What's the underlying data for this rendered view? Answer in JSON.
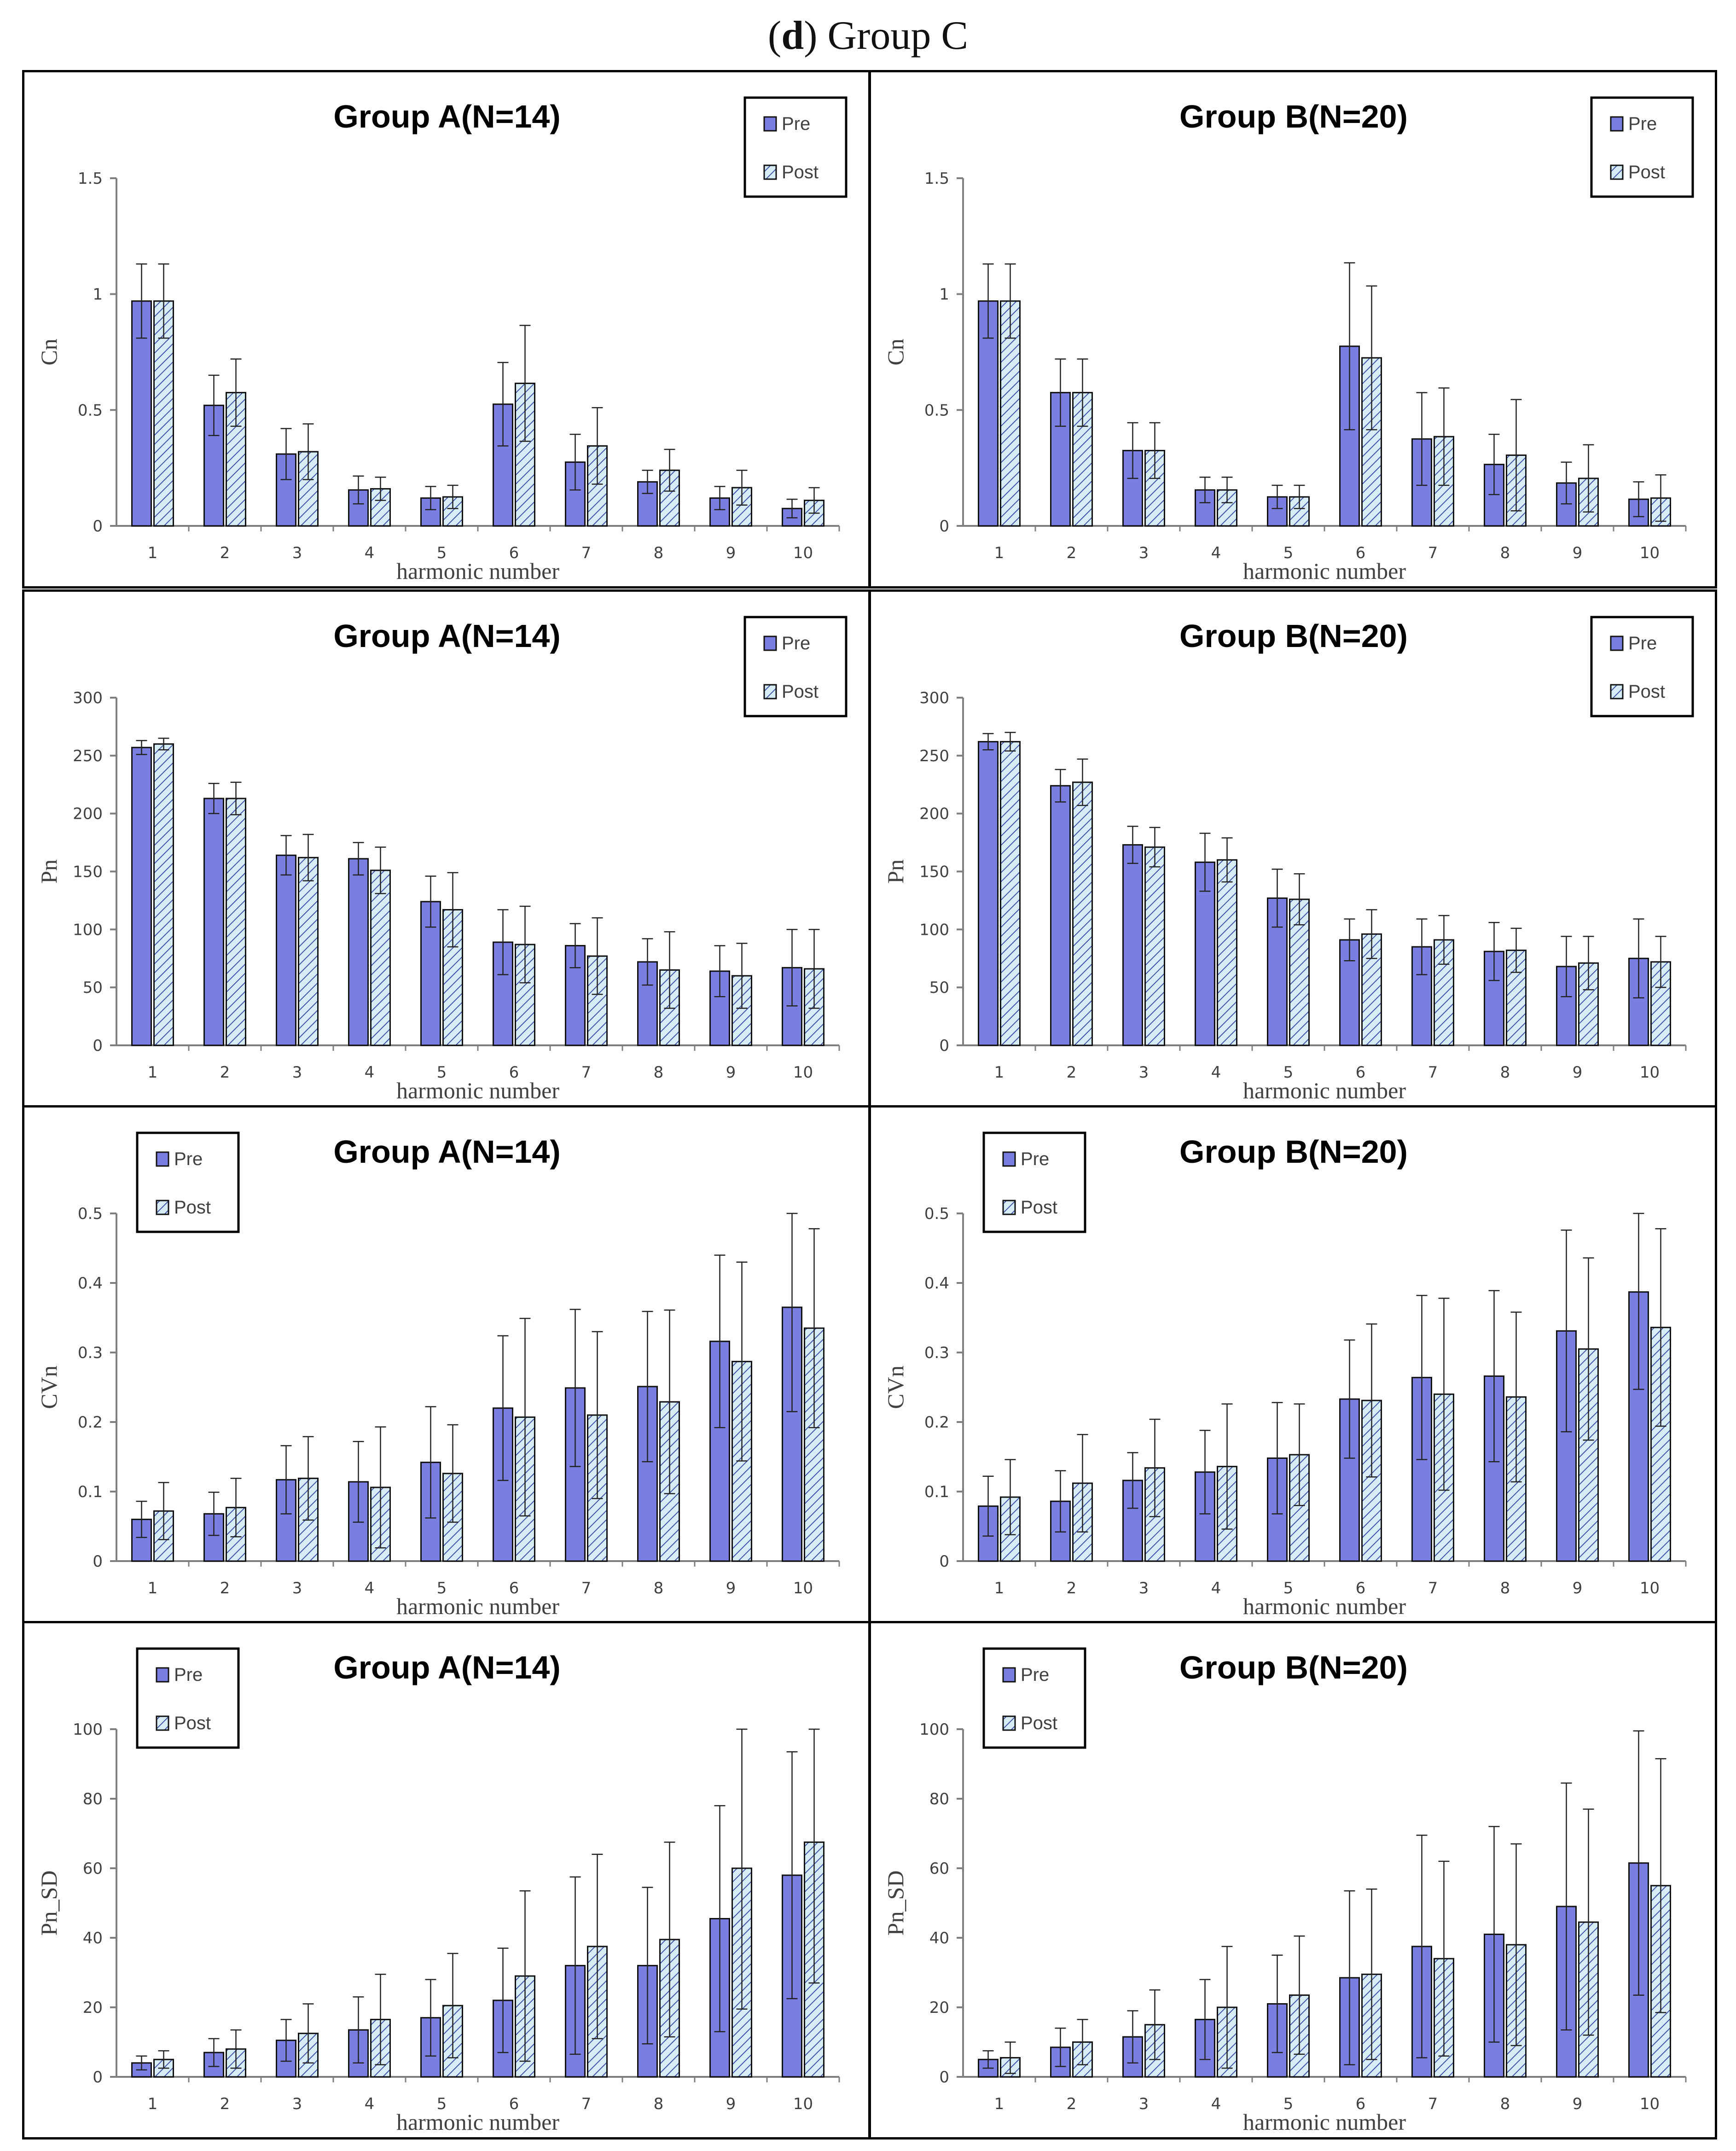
{
  "figure": {
    "label_prefix": "(",
    "label_letter": "d",
    "label_suffix": ")",
    "title": "Group C"
  },
  "colors": {
    "pre": "#7a7ee0",
    "post": "#d8ecf6",
    "hatch": "#3f55a8",
    "axis": "#7f7f7f",
    "text": "#404040"
  },
  "chart_data": [
    {
      "id": "cn-a",
      "type": "bar",
      "title": "Group A(N=14)",
      "ylabel": "Cn",
      "xlabel": "harmonic number",
      "ylim": [
        0,
        1.5
      ],
      "yticks": [
        "0",
        "0.5",
        "1",
        "1.5"
      ],
      "ytick_values": [
        0,
        0.5,
        1,
        1.5
      ],
      "legend_position": "top-right",
      "categories": [
        "1",
        "2",
        "3",
        "4",
        "5",
        "6",
        "7",
        "8",
        "9",
        "10"
      ],
      "series": [
        {
          "name": "Pre",
          "values": [
            0.97,
            0.52,
            0.31,
            0.155,
            0.12,
            0.525,
            0.275,
            0.19,
            0.12,
            0.075
          ],
          "errors": [
            0.16,
            0.13,
            0.11,
            0.06,
            0.05,
            0.18,
            0.12,
            0.05,
            0.05,
            0.04
          ]
        },
        {
          "name": "Post",
          "values": [
            0.97,
            0.575,
            0.32,
            0.16,
            0.125,
            0.615,
            0.345,
            0.24,
            0.165,
            0.11
          ],
          "errors": [
            0.16,
            0.145,
            0.12,
            0.05,
            0.05,
            0.25,
            0.165,
            0.09,
            0.075,
            0.055
          ]
        }
      ]
    },
    {
      "id": "cn-b",
      "type": "bar",
      "title": "Group B(N=20)",
      "ylabel": "Cn",
      "xlabel": "harmonic number",
      "ylim": [
        0,
        1.5
      ],
      "yticks": [
        "0",
        "0.5",
        "1",
        "1.5"
      ],
      "ytick_values": [
        0,
        0.5,
        1,
        1.5
      ],
      "legend_position": "top-right",
      "categories": [
        "1",
        "2",
        "3",
        "4",
        "5",
        "6",
        "7",
        "8",
        "9",
        "10"
      ],
      "series": [
        {
          "name": "Pre",
          "values": [
            0.97,
            0.575,
            0.325,
            0.155,
            0.125,
            0.775,
            0.375,
            0.265,
            0.185,
            0.115
          ],
          "errors": [
            0.16,
            0.145,
            0.12,
            0.055,
            0.05,
            0.36,
            0.2,
            0.13,
            0.09,
            0.075
          ]
        },
        {
          "name": "Post",
          "values": [
            0.97,
            0.575,
            0.325,
            0.155,
            0.125,
            0.725,
            0.385,
            0.305,
            0.205,
            0.12
          ],
          "errors": [
            0.16,
            0.145,
            0.12,
            0.055,
            0.05,
            0.31,
            0.21,
            0.24,
            0.145,
            0.1
          ]
        }
      ]
    },
    {
      "id": "pn-a",
      "type": "bar",
      "title": "Group A(N=14)",
      "ylabel": "Pn",
      "xlabel": "harmonic number",
      "ylim": [
        0,
        300
      ],
      "yticks": [
        "0",
        "50",
        "100",
        "150",
        "200",
        "250",
        "300"
      ],
      "ytick_values": [
        0,
        50,
        100,
        150,
        200,
        250,
        300
      ],
      "legend_position": "top-right",
      "categories": [
        "1",
        "2",
        "3",
        "4",
        "5",
        "6",
        "7",
        "8",
        "9",
        "10"
      ],
      "series": [
        {
          "name": "Pre",
          "values": [
            257,
            213,
            164,
            161,
            124,
            89,
            86,
            72,
            64,
            67
          ],
          "errors": [
            6,
            13,
            17,
            14,
            22,
            28,
            19,
            20,
            22,
            33
          ]
        },
        {
          "name": "Post",
          "values": [
            260,
            213,
            162,
            151,
            117,
            87,
            77,
            65,
            60,
            66
          ],
          "errors": [
            5,
            14,
            20,
            20,
            32,
            33,
            33,
            33,
            28,
            34
          ]
        }
      ]
    },
    {
      "id": "pn-b",
      "type": "bar",
      "title": "Group B(N=20)",
      "ylabel": "Pn",
      "xlabel": "harmonic number",
      "ylim": [
        0,
        300
      ],
      "yticks": [
        "0",
        "50",
        "100",
        "150",
        "200",
        "250",
        "300"
      ],
      "ytick_values": [
        0,
        50,
        100,
        150,
        200,
        250,
        300
      ],
      "legend_position": "top-right",
      "categories": [
        "1",
        "2",
        "3",
        "4",
        "5",
        "6",
        "7",
        "8",
        "9",
        "10"
      ],
      "series": [
        {
          "name": "Pre",
          "values": [
            262,
            224,
            173,
            158,
            127,
            91,
            85,
            81,
            68,
            75
          ],
          "errors": [
            7,
            14,
            16,
            25,
            25,
            18,
            24,
            25,
            26,
            34
          ]
        },
        {
          "name": "Post",
          "values": [
            262,
            227,
            171,
            160,
            126,
            96,
            91,
            82,
            71,
            72
          ],
          "errors": [
            8,
            20,
            17,
            19,
            22,
            21,
            21,
            19,
            23,
            22
          ]
        }
      ]
    },
    {
      "id": "cvn-a",
      "type": "bar",
      "title": "Group A(N=14)",
      "ylabel": "CVn",
      "xlabel": "harmonic number",
      "ylim": [
        0,
        0.5
      ],
      "yticks": [
        "0",
        "0.1",
        "0.2",
        "0.3",
        "0.4",
        "0.5"
      ],
      "ytick_values": [
        0,
        0.1,
        0.2,
        0.3,
        0.4,
        0.5
      ],
      "legend_position": "top-left",
      "categories": [
        "1",
        "2",
        "3",
        "4",
        "5",
        "6",
        "7",
        "8",
        "9",
        "10"
      ],
      "series": [
        {
          "name": "Pre",
          "values": [
            0.06,
            0.068,
            0.117,
            0.114,
            0.142,
            0.22,
            0.249,
            0.251,
            0.316,
            0.365
          ],
          "errors": [
            0.026,
            0.031,
            0.049,
            0.058,
            0.08,
            0.104,
            0.113,
            0.108,
            0.124,
            0.15
          ]
        },
        {
          "name": "Post",
          "values": [
            0.072,
            0.077,
            0.119,
            0.106,
            0.126,
            0.207,
            0.21,
            0.229,
            0.287,
            0.335
          ],
          "errors": [
            0.041,
            0.042,
            0.06,
            0.087,
            0.07,
            0.142,
            0.12,
            0.132,
            0.143,
            0.143
          ]
        }
      ]
    },
    {
      "id": "cvn-b",
      "type": "bar",
      "title": "Group B(N=20)",
      "ylabel": "CVn",
      "xlabel": "harmonic number",
      "ylim": [
        0,
        0.5
      ],
      "yticks": [
        "0",
        "0.1",
        "0.2",
        "0.3",
        "0.4",
        "0.5"
      ],
      "ytick_values": [
        0,
        0.1,
        0.2,
        0.3,
        0.4,
        0.5
      ],
      "legend_position": "top-left",
      "categories": [
        "1",
        "2",
        "3",
        "4",
        "5",
        "6",
        "7",
        "8",
        "9",
        "10"
      ],
      "series": [
        {
          "name": "Pre",
          "values": [
            0.079,
            0.086,
            0.116,
            0.128,
            0.148,
            0.233,
            0.264,
            0.266,
            0.331,
            0.387
          ],
          "errors": [
            0.043,
            0.044,
            0.04,
            0.06,
            0.08,
            0.085,
            0.118,
            0.123,
            0.145,
            0.14
          ]
        },
        {
          "name": "Post",
          "values": [
            0.092,
            0.112,
            0.134,
            0.136,
            0.153,
            0.231,
            0.24,
            0.236,
            0.305,
            0.336
          ],
          "errors": [
            0.054,
            0.07,
            0.07,
            0.09,
            0.073,
            0.11,
            0.138,
            0.122,
            0.131,
            0.142
          ]
        }
      ]
    },
    {
      "id": "pnsd-a",
      "type": "bar",
      "title": "Group A(N=14)",
      "ylabel": "Pn_SD",
      "xlabel": "harmonic number",
      "ylim": [
        0,
        100
      ],
      "yticks": [
        "0",
        "20",
        "40",
        "60",
        "80",
        "100"
      ],
      "ytick_values": [
        0,
        20,
        40,
        60,
        80,
        100
      ],
      "legend_position": "top-left",
      "categories": [
        "1",
        "2",
        "3",
        "4",
        "5",
        "6",
        "7",
        "8",
        "9",
        "10"
      ],
      "series": [
        {
          "name": "Pre",
          "values": [
            4,
            7,
            10.5,
            13.5,
            17,
            22,
            32,
            32,
            45.5,
            58
          ],
          "errors": [
            2,
            4,
            6,
            9.5,
            11,
            15,
            25.5,
            22.5,
            32.5,
            35.5
          ]
        },
        {
          "name": "Post",
          "values": [
            5,
            8,
            12.5,
            16.5,
            20.5,
            29,
            37.5,
            39.5,
            60,
            67.5
          ],
          "errors": [
            2.5,
            5.5,
            8.5,
            13,
            15,
            24.5,
            26.5,
            28,
            40.5,
            40.5
          ]
        }
      ]
    },
    {
      "id": "pnsd-b",
      "type": "bar",
      "title": "Group B(N=20)",
      "ylabel": "Pn_SD",
      "xlabel": "harmonic number",
      "ylim": [
        0,
        100
      ],
      "yticks": [
        "0",
        "20",
        "40",
        "60",
        "80",
        "100"
      ],
      "ytick_values": [
        0,
        20,
        40,
        60,
        80,
        100
      ],
      "legend_position": "top-left",
      "categories": [
        "1",
        "2",
        "3",
        "4",
        "5",
        "6",
        "7",
        "8",
        "9",
        "10"
      ],
      "series": [
        {
          "name": "Pre",
          "values": [
            5,
            8.5,
            11.5,
            16.5,
            21,
            28.5,
            37.5,
            41,
            49,
            61.5
          ],
          "errors": [
            2.5,
            5.5,
            7.5,
            11.5,
            14,
            25,
            32,
            31,
            35.5,
            38
          ]
        },
        {
          "name": "Post",
          "values": [
            5.5,
            10,
            15,
            20,
            23.5,
            29.5,
            34,
            38,
            44.5,
            55
          ],
          "errors": [
            4.5,
            6.5,
            10,
            17.5,
            17,
            24.5,
            28,
            29,
            32.5,
            36.5
          ]
        }
      ]
    }
  ]
}
